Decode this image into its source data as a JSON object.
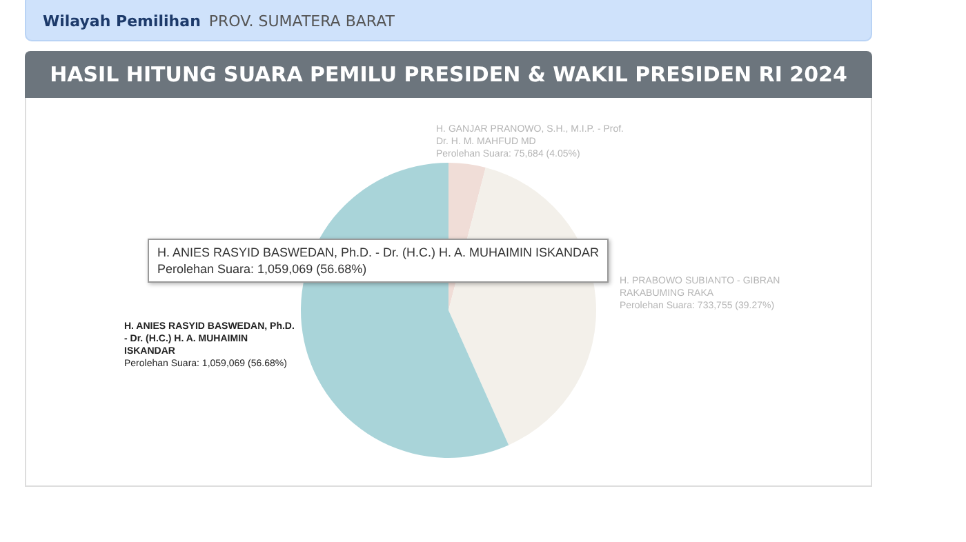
{
  "chart_data": {
    "type": "pie",
    "title": "HASIL HITUNG SUARA PEMILU PRESIDEN & WAKIL PRESIDEN RI 2024",
    "categories": [
      "H. GANJAR PRANOWO, S.H., M.I.P. - Prof. Dr. H. M. MAHFUD MD",
      "H. PRABOWO SUBIANTO - GIBRAN RAKABUMING RAKA",
      "H. ANIES RASYID BASWEDAN, Ph.D. - Dr. (H.C.) H. A. MUHAIMIN ISKANDAR"
    ],
    "values": [
      75684,
      733755,
      1059069
    ],
    "colors": [
      "#f0ddd7",
      "#f3f0ea",
      "#a9d4d9"
    ],
    "value_labels": [
      "Perolehan Suara: 75,684 (4.05%)",
      "Perolehan Suara: 733,755 (39.27%)",
      "Perolehan Suara: 1,059,069 (56.68%)"
    ],
    "annotations": [
      "Wilayah Pemilihan",
      "PROV. SUMATERA BARAT",
      "H. ANIES RASYID BASWEDAN, Ph.D. - Dr. (H.C.) H. A. MUHAIMIN ISKANDAR\nPerolehan Suara: 1,059,069 (56.68%)"
    ]
  }
}
